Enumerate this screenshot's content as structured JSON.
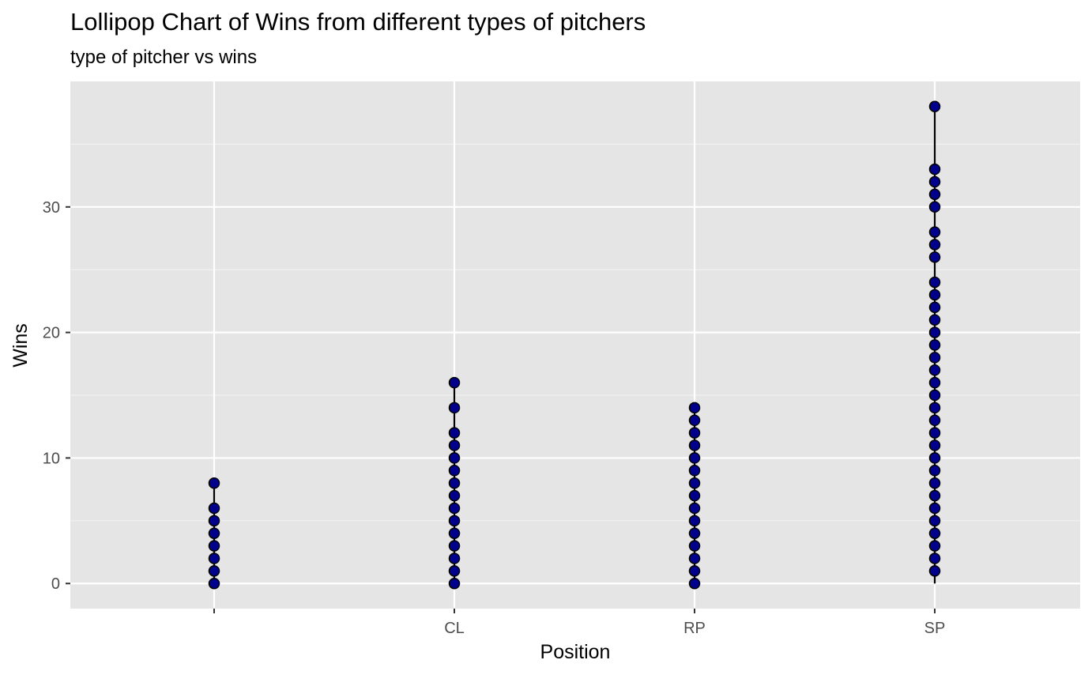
{
  "chart_data": {
    "type": "scatter",
    "title": "Lollipop Chart of Wins from different types of pitchers",
    "subtitle": "type of pitcher vs wins",
    "xlabel": "Position",
    "ylabel": "Wins",
    "categories": [
      "",
      "CL",
      "RP",
      "SP"
    ],
    "ylim": [
      -2,
      40
    ],
    "yticks": [
      0,
      10,
      20,
      30
    ],
    "grid": true,
    "point_color": "#00008B",
    "stem_color": "#000000",
    "panel_background": "#E5E5E5",
    "series": [
      {
        "category": "",
        "values": [
          0,
          1,
          2,
          3,
          4,
          5,
          6,
          8
        ]
      },
      {
        "category": "CL",
        "values": [
          0,
          1,
          2,
          3,
          4,
          5,
          6,
          7,
          8,
          9,
          10,
          11,
          12,
          14,
          16
        ]
      },
      {
        "category": "RP",
        "values": [
          0,
          1,
          2,
          3,
          4,
          5,
          6,
          7,
          8,
          9,
          10,
          11,
          12,
          13,
          14
        ]
      },
      {
        "category": "SP",
        "values": [
          1,
          2,
          3,
          4,
          5,
          6,
          7,
          8,
          9,
          10,
          11,
          12,
          13,
          14,
          15,
          16,
          17,
          18,
          19,
          20,
          21,
          22,
          23,
          24,
          26,
          27,
          28,
          30,
          31,
          32,
          33,
          38
        ]
      }
    ]
  }
}
